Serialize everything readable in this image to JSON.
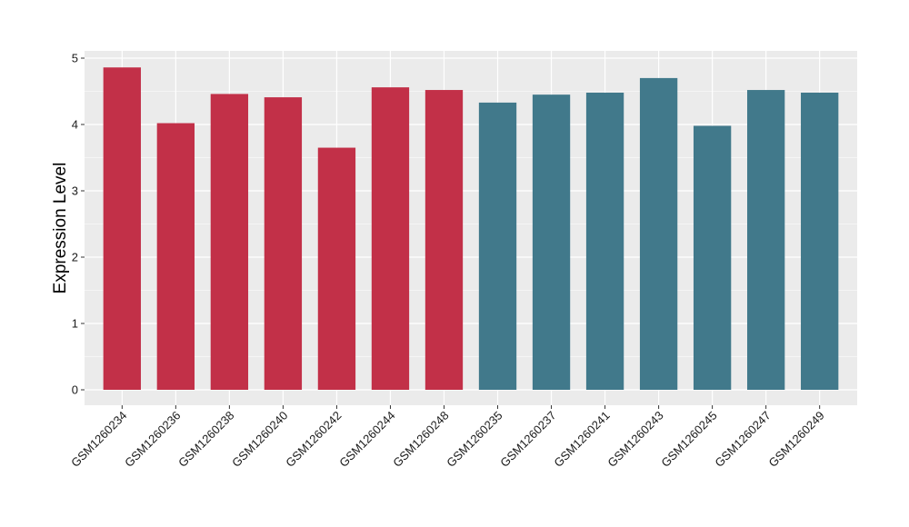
{
  "chart_data": {
    "type": "bar",
    "title": "",
    "xlabel": "",
    "ylabel": "Expression Level",
    "ylim": [
      0,
      5
    ],
    "yticks": [
      0,
      1,
      2,
      3,
      4,
      5
    ],
    "grid": true,
    "legend": "none",
    "categories": [
      "GSM1260234",
      "GSM1260236",
      "GSM1260238",
      "GSM1260240",
      "GSM1260242",
      "GSM1260244",
      "GSM1260248",
      "GSM1260235",
      "GSM1260237",
      "GSM1260241",
      "GSM1260243",
      "GSM1260245",
      "GSM1260247",
      "GSM1260249"
    ],
    "values": [
      4.86,
      4.02,
      4.46,
      4.41,
      3.65,
      4.56,
      4.52,
      4.33,
      4.45,
      4.48,
      4.7,
      3.98,
      4.52,
      4.48
    ],
    "groups": [
      0,
      0,
      0,
      0,
      0,
      0,
      0,
      1,
      1,
      1,
      1,
      1,
      1,
      1
    ],
    "colors": {
      "group_0": "#c23048",
      "group_1": "#41798b",
      "panel_background": "#ebebeb",
      "grid": "#ffffff"
    }
  }
}
